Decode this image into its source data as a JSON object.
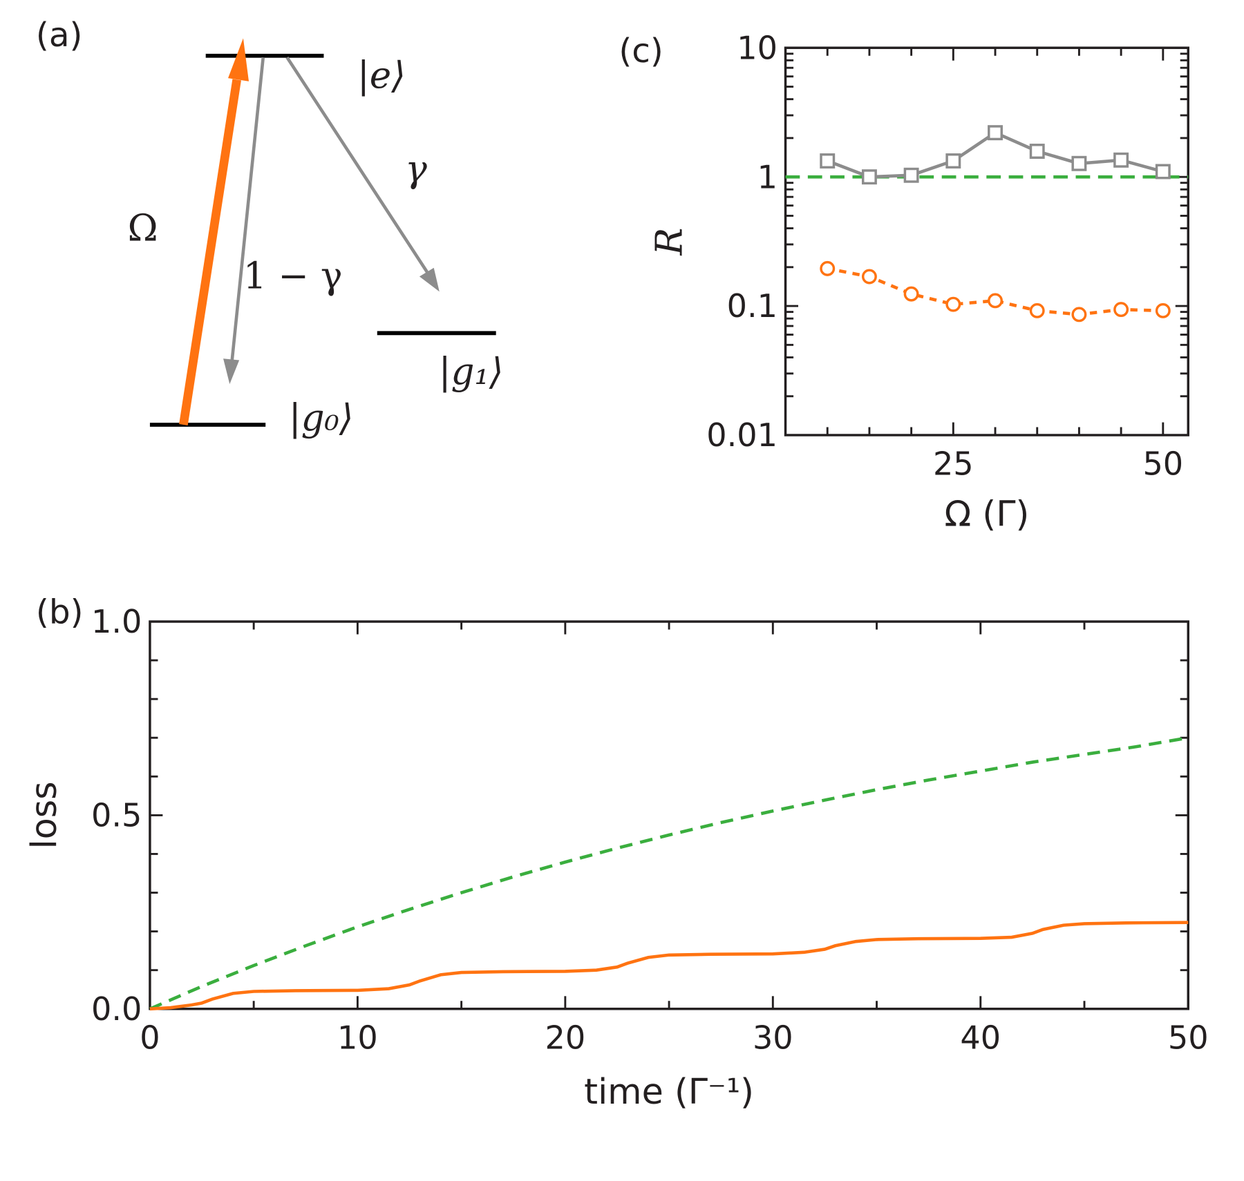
{
  "panel_labels": {
    "a": "(a)",
    "b": "(b)",
    "c": "(c)"
  },
  "colors": {
    "orange": "#ff7311",
    "green": "#3aae3e",
    "gray": "#8c8c8c",
    "axis": "#231f20"
  },
  "diagram": {
    "levels": {
      "e": "|e⟩",
      "g0": "|g₀⟩",
      "g1": "|g₁⟩"
    },
    "arrows": {
      "drive": "Ω",
      "decay_back": "1 − γ",
      "decay_loss": "γ"
    }
  },
  "chart_data": [
    {
      "id": "b",
      "type": "line",
      "xlabel": "time (Γ⁻¹)",
      "ylabel": "loss",
      "xlim": [
        0,
        50
      ],
      "ylim": [
        0,
        1
      ],
      "xticks": [
        0,
        10,
        20,
        30,
        40,
        50
      ],
      "xtick_labels": [
        "0",
        "10",
        "20",
        "30",
        "40",
        "50"
      ],
      "yticks": [
        0,
        0.5,
        1
      ],
      "ytick_labels": [
        "0.0",
        "0.5",
        "1.0"
      ],
      "series": [
        {
          "name": "green-dashed",
          "style": "dashed",
          "color": "#3aae3e",
          "x": [
            0,
            2.5,
            5,
            7.5,
            10,
            12.5,
            15,
            17.5,
            20,
            22.5,
            25,
            27.5,
            30,
            32.5,
            35,
            37.5,
            40,
            42.5,
            45,
            47.5,
            50
          ],
          "y": [
            0,
            0.058,
            0.112,
            0.163,
            0.212,
            0.257,
            0.3,
            0.341,
            0.379,
            0.415,
            0.449,
            0.481,
            0.511,
            0.539,
            0.566,
            0.591,
            0.614,
            0.637,
            0.657,
            0.677,
            0.7
          ]
        },
        {
          "name": "orange-solid",
          "style": "solid",
          "color": "#ff7311",
          "x": [
            0,
            1,
            2,
            2.5,
            3,
            4,
            5,
            7,
            10,
            11.5,
            12.5,
            13,
            14,
            15,
            17,
            20,
            21.5,
            22.5,
            23,
            24,
            25,
            27,
            30,
            31.5,
            32.5,
            33,
            34,
            35,
            37,
            40,
            41.5,
            42.5,
            43,
            44,
            45,
            47,
            50
          ],
          "y": [
            0,
            0.003,
            0.01,
            0.015,
            0.025,
            0.04,
            0.045,
            0.047,
            0.048,
            0.052,
            0.062,
            0.072,
            0.088,
            0.094,
            0.096,
            0.097,
            0.1,
            0.108,
            0.118,
            0.133,
            0.139,
            0.141,
            0.142,
            0.146,
            0.154,
            0.163,
            0.174,
            0.179,
            0.181,
            0.182,
            0.185,
            0.195,
            0.205,
            0.216,
            0.22,
            0.222,
            0.223
          ]
        }
      ]
    },
    {
      "id": "c",
      "type": "scatter",
      "xlabel": "Ω (Γ)",
      "ylabel": "R",
      "xlim": [
        5,
        53
      ],
      "ylim": [
        0.01,
        10
      ],
      "yscale": "log",
      "xticks": [
        25,
        50
      ],
      "xtick_labels": [
        "25",
        "50"
      ],
      "yticks": [
        0.01,
        0.1,
        1,
        10
      ],
      "ytick_labels": [
        "0.01",
        "0.1",
        "1",
        "10"
      ],
      "reference_line": {
        "y": 1,
        "style": "dashed",
        "color": "#3aae3e"
      },
      "series": [
        {
          "name": "gray-squares",
          "marker": "square",
          "style": "solid",
          "color": "#8c8c8c",
          "x": [
            10,
            15,
            20,
            25,
            30,
            35,
            40,
            45,
            50
          ],
          "y": [
            1.33,
            1.0,
            1.03,
            1.33,
            2.2,
            1.58,
            1.27,
            1.35,
            1.1
          ]
        },
        {
          "name": "orange-circles",
          "marker": "circle",
          "style": "dotted",
          "color": "#ff7311",
          "x": [
            10,
            15,
            20,
            25,
            30,
            35,
            40,
            45,
            50
          ],
          "y": [
            0.195,
            0.169,
            0.124,
            0.103,
            0.11,
            0.092,
            0.086,
            0.094,
            0.092
          ]
        }
      ]
    }
  ]
}
